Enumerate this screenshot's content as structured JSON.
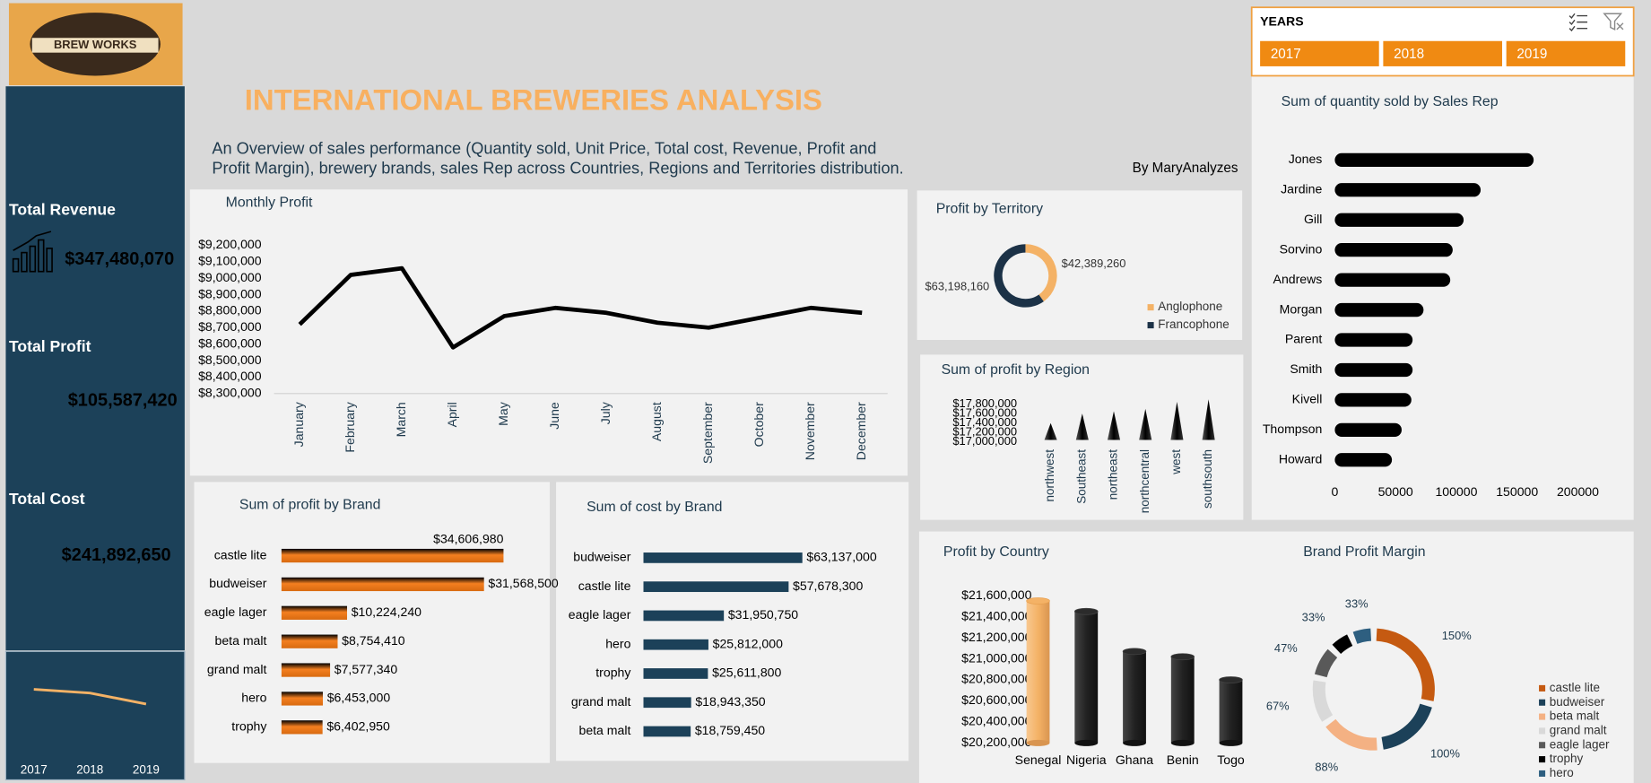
{
  "header": {
    "logo": "BREW WORKS",
    "title": "INTERNATIONAL BREWERIES ANALYSIS",
    "subtitle_lines": [
      "An Overview of sales performance (Quantity sold, Unit Price, Total cost, Revenue, Profit and",
      "Profit Margin), brewery brands, sales Rep across Countries, Regions and Territories distribution."
    ],
    "author": "By MaryAnalyzes"
  },
  "kpis": [
    {
      "label": "Total Revenue",
      "value": "$347,480,070"
    },
    {
      "label": "Total Profit",
      "value": "$105,587,420"
    },
    {
      "label": "Total Cost",
      "value": "$241,892,650"
    }
  ],
  "slicer": {
    "title": "YEARS",
    "items": [
      "2017",
      "2018",
      "2019"
    ]
  },
  "chart_data": [
    {
      "type": "line",
      "categories": [
        "2017",
        "2018",
        "2019"
      ],
      "values": [
        36,
        35.5,
        34
      ],
      "ylim": [
        30,
        40
      ],
      "color": "#f4b266"
    },
    {
      "type": "line",
      "title": "Monthly Profit",
      "categories": [
        "January",
        "February",
        "March",
        "April",
        "May",
        "June",
        "July",
        "August",
        "September",
        "October",
        "November",
        "December"
      ],
      "values": [
        8720000,
        9020000,
        9060000,
        8580000,
        8770000,
        8820000,
        8790000,
        8730000,
        8700000,
        8760000,
        8820000,
        8790000
      ],
      "ylim": [
        8300000,
        9200000
      ],
      "yticks": [
        {
          "value": 8300000,
          "label": "$8,300,000"
        },
        {
          "value": 8400000,
          "label": "$8,400,000"
        },
        {
          "value": 8500000,
          "label": "$8,500,000"
        },
        {
          "value": 8600000,
          "label": "$8,600,000"
        },
        {
          "value": 8700000,
          "label": "$8,700,000"
        },
        {
          "value": 8800000,
          "label": "$8,800,000"
        },
        {
          "value": 8900000,
          "label": "$8,900,000"
        },
        {
          "value": 9000000,
          "label": "$9,000,000"
        },
        {
          "value": 9100000,
          "label": "$9,100,000"
        },
        {
          "value": 9200000,
          "label": "$9,200,000"
        }
      ],
      "color": "#000000"
    },
    {
      "type": "donut",
      "title": "Profit by Territory",
      "categories": [
        "Anglophone",
        "Francophone"
      ],
      "values": [
        42389260,
        63198160
      ],
      "value_labels": [
        "$42,389,260",
        "$63,198,160"
      ],
      "colors": [
        "#f4b266",
        "#1c3247"
      ]
    },
    {
      "type": "cone",
      "title": "Sum of profit by Region",
      "categories": [
        "northwest",
        "Southeast",
        "northeast",
        "northcentral",
        "west",
        "southsouth"
      ],
      "values": [
        17400000,
        17600000,
        17650000,
        17700000,
        17850000,
        17900000
      ],
      "ylim": [
        17000000,
        17800000
      ],
      "yticks": [
        {
          "value": 17000000,
          "label": "$17,000,000"
        },
        {
          "value": 17200000,
          "label": "$17,200,000"
        },
        {
          "value": 17400000,
          "label": "$17,400,000"
        },
        {
          "value": 17600000,
          "label": "$17,600,000"
        },
        {
          "value": 17800000,
          "label": "$17,800,000"
        }
      ],
      "color": "#000000"
    },
    {
      "type": "hbar",
      "title": "Sum of quantity sold by Sales Rep",
      "categories": [
        "Jones",
        "Jardine",
        "Gill",
        "Sorvino",
        "Andrews",
        "Morgan",
        "Parent",
        "Smith",
        "Kivell",
        "Thompson",
        "Howard"
      ],
      "values": [
        163600,
        120000,
        106000,
        97000,
        95000,
        73000,
        64000,
        64000,
        63000,
        55000,
        47000
      ],
      "xlim": [
        0,
        200000
      ],
      "xticks": [
        0,
        50000,
        100000,
        150000,
        200000
      ],
      "color": "#000000"
    },
    {
      "type": "hbar",
      "title": "Sum of profit by Brand",
      "categories": [
        "castle lite",
        "budweiser",
        "eagle lager",
        "beta malt",
        "grand malt",
        "hero",
        "trophy"
      ],
      "values": [
        34606980,
        31568500,
        10224240,
        8754410,
        7577340,
        6453000,
        6402950
      ],
      "value_labels": [
        "$34,606,980",
        "$31,568,500",
        "$10,224,240",
        "$8,754,410",
        "$7,577,340",
        "$6,453,000",
        "$6,402,950"
      ],
      "color": "#f47f20"
    },
    {
      "type": "hbar",
      "title": "Sum of cost by Brand",
      "categories": [
        "budweiser",
        "castle lite",
        "eagle lager",
        "hero",
        "trophy",
        "grand malt",
        "beta malt"
      ],
      "values": [
        63137000,
        57678300,
        31950750,
        25812000,
        25611800,
        18943350,
        18759450
      ],
      "value_labels": [
        "$63,137,000",
        "$57,678,300",
        "$31,950,750",
        "$25,812,000",
        "$25,611,800",
        "$18,943,350",
        "$18,759,450"
      ],
      "color": "#1c4159"
    },
    {
      "type": "bar",
      "title": "Profit by Country",
      "categories": [
        "Senegal",
        "Nigeria",
        "Ghana",
        "Benin",
        "Togo"
      ],
      "values": [
        21550000,
        21450000,
        21070000,
        21020000,
        20800000
      ],
      "ylim": [
        20200000,
        21600000
      ],
      "yticks": [
        {
          "value": 20200000,
          "label": "$20,200,000"
        },
        {
          "value": 20400000,
          "label": "$20,400,000"
        },
        {
          "value": 20600000,
          "label": "$20,600,000"
        },
        {
          "value": 20800000,
          "label": "$20,800,000"
        },
        {
          "value": 21000000,
          "label": "$21,000,000"
        },
        {
          "value": 21200000,
          "label": "$21,200,000"
        },
        {
          "value": 21400000,
          "label": "$21,400,000"
        },
        {
          "value": 21600000,
          "label": "$21,600,000"
        }
      ],
      "colors": [
        "#f4b266",
        "#2b2b2b",
        "#2b2b2b",
        "#2b2b2b",
        "#2b2b2b"
      ]
    },
    {
      "type": "donut",
      "title": "Brand Profit Margin",
      "categories": [
        "castle lite",
        "budweiser",
        "beta malt",
        "grand malt",
        "eagle lager",
        "trophy",
        "hero"
      ],
      "values": [
        150,
        100,
        88,
        67,
        47,
        33,
        33
      ],
      "value_labels": [
        "150%",
        "100%",
        "88%",
        "67%",
        "47%",
        "33%",
        "33%"
      ],
      "colors": [
        "#c55a11",
        "#1c4159",
        "#f4b183",
        "#d9d9d9",
        "#595959",
        "#000000",
        "#2e5f80"
      ]
    }
  ]
}
